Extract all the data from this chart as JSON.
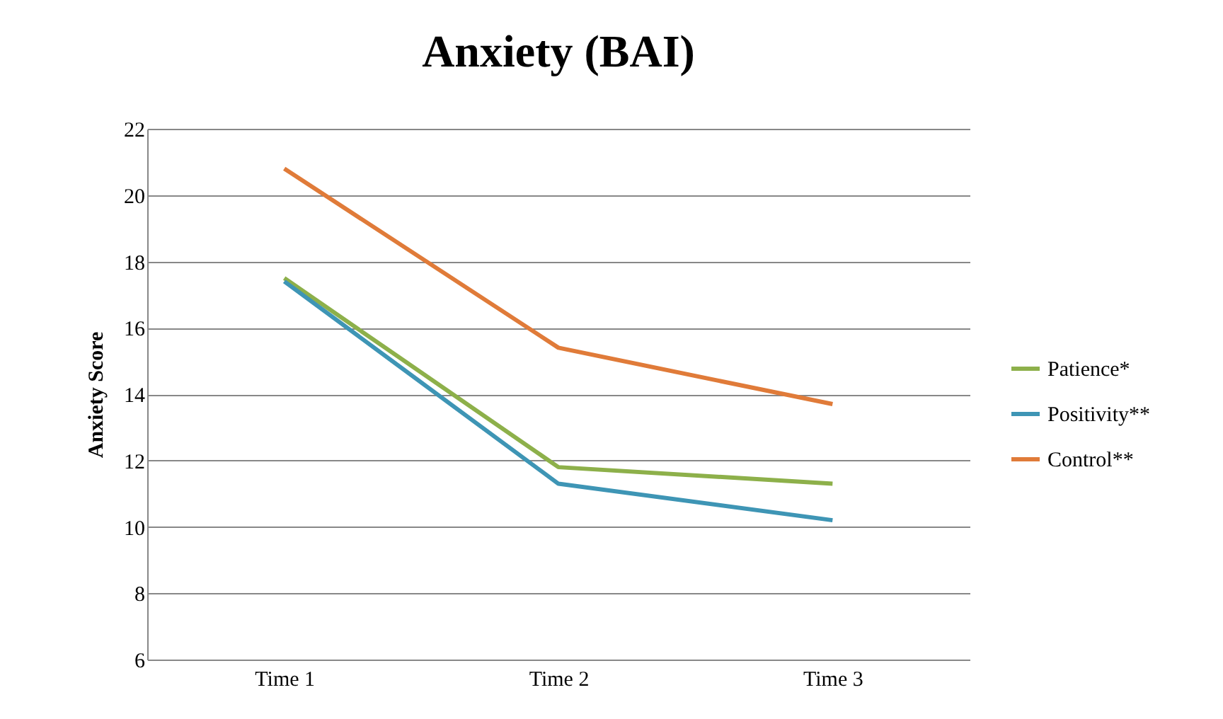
{
  "chart_data": {
    "type": "line",
    "title": "Anxiety (BAI)",
    "ylabel": "Anxiety Score",
    "categories": [
      "Time 1",
      "Time 2",
      "Time 3"
    ],
    "series": [
      {
        "name": "Patience*",
        "color": "#8db04a",
        "values": [
          17.5,
          11.8,
          11.3
        ]
      },
      {
        "name": "Positivity**",
        "color": "#3e95b5",
        "values": [
          17.4,
          11.3,
          10.2
        ]
      },
      {
        "name": "Control**",
        "color": "#e07b39",
        "values": [
          20.8,
          15.4,
          13.7
        ]
      }
    ],
    "ylim": [
      6,
      22
    ],
    "yticks": [
      6,
      8,
      10,
      12,
      14,
      16,
      18,
      20,
      22
    ],
    "grid": "y",
    "legend": "right",
    "marker": "none",
    "line_style": "solid"
  }
}
